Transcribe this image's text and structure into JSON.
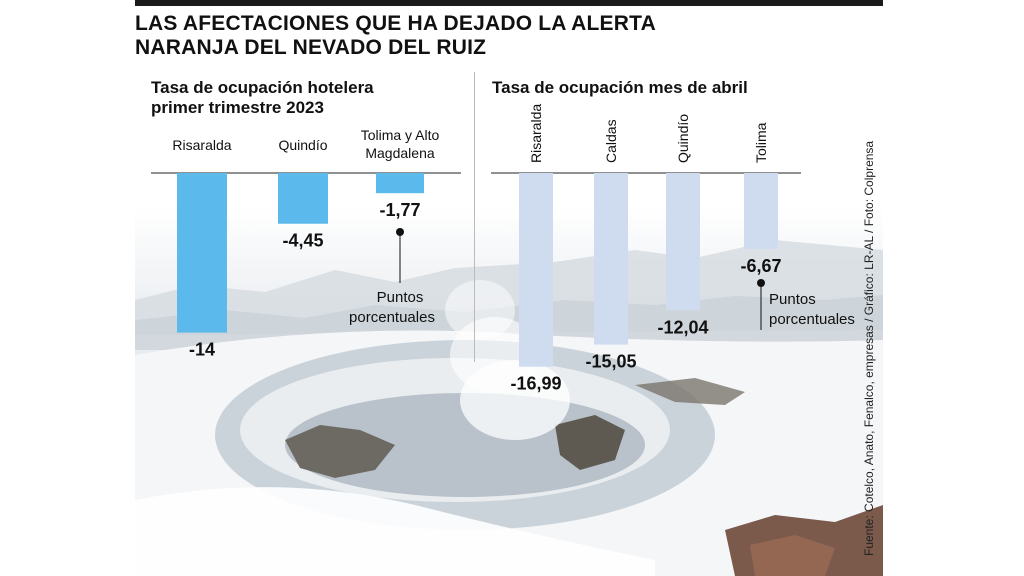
{
  "headline": {
    "line1": "LAS AFECTACIONES QUE HA DEJADO LA ALERTA",
    "line2": "NARANJA DEL NEVADO DEL RUIZ"
  },
  "source": "Fuente: Cotelco, Anato, Fenalco, empresas / Gráfico: LR-AL / Foto: Colprensa",
  "colors": {
    "bar_left": "#5bb9ec",
    "bar_right": "#cfdcef",
    "text": "#111111"
  },
  "chart_data": [
    {
      "type": "bar",
      "title": "Tasa de ocupación hotelera primer trimestre 2023",
      "title_lines": [
        "Tasa de ocupación hotelera",
        "primer trimestre 2023"
      ],
      "categories": [
        "Risaralda",
        "Quindío",
        "Tolima y Alto Magdalena"
      ],
      "category_lines": [
        [
          "Risaralda"
        ],
        [
          "Quindío"
        ],
        [
          "Tolima y Alto",
          "Magdalena"
        ]
      ],
      "values": [
        -14,
        -4.45,
        -1.77
      ],
      "value_labels": [
        "-14",
        "-4,45",
        "-1,77"
      ],
      "unit_label": [
        "Puntos",
        "porcentuales"
      ],
      "ylim": [
        -17,
        0
      ]
    },
    {
      "type": "bar",
      "title": "Tasa de ocupación mes de abril",
      "title_lines": [
        "Tasa de ocupación mes de abril"
      ],
      "categories": [
        "Risaralda",
        "Caldas",
        "Quindío",
        "Tolima"
      ],
      "values": [
        -16.99,
        -15.05,
        -12.04,
        -6.67
      ],
      "value_labels": [
        "-16,99",
        "-15,05",
        "-12,04",
        "-6,67"
      ],
      "unit_label": [
        "Puntos",
        "porcentuales"
      ],
      "ylim": [
        -17,
        0
      ]
    }
  ]
}
